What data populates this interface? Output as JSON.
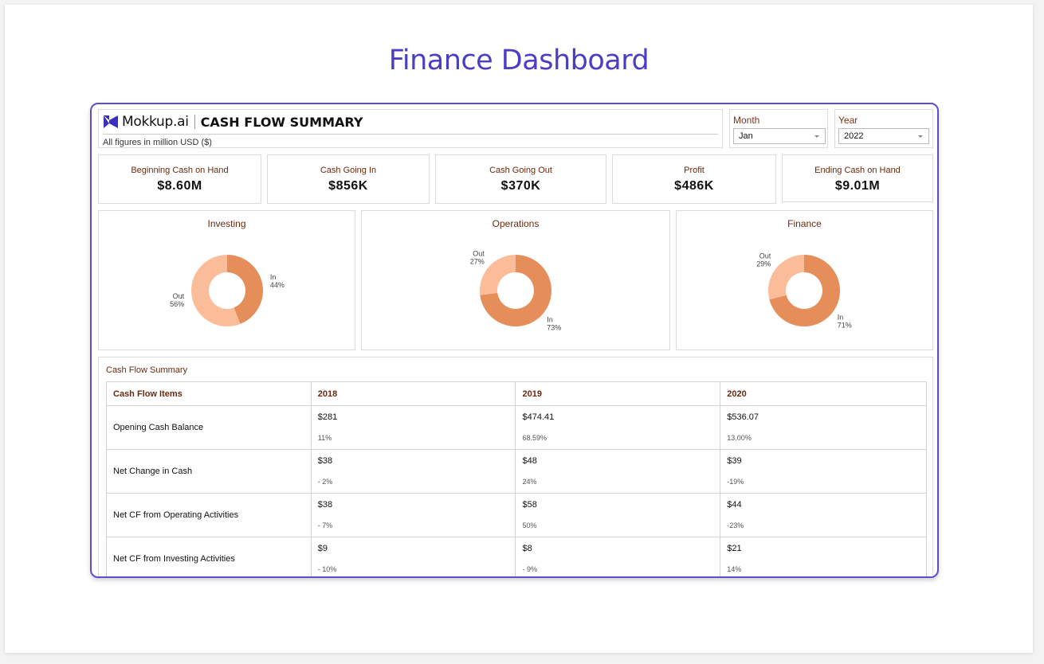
{
  "page": {
    "title": "Finance Dashboard"
  },
  "header": {
    "brand": "Mokkup.ai",
    "title": "CASH FLOW SUMMARY",
    "subtitle": "All figures in million USD ($)",
    "logo_icon": "mokkup-logo-icon",
    "accent": "#4a3fc3"
  },
  "filters": {
    "month": {
      "label": "Month",
      "value": "Jan"
    },
    "year": {
      "label": "Year",
      "value": "2022"
    }
  },
  "kpis": [
    {
      "label": "Beginning Cash on Hand",
      "value": "$8.60M"
    },
    {
      "label": "Cash Going In",
      "value": "$856K"
    },
    {
      "label": "Cash Going Out",
      "value": "$370K"
    },
    {
      "label": "Profit",
      "value": "$486K"
    },
    {
      "label": "Ending Cash on Hand",
      "value": "$9.01M"
    }
  ],
  "chart_data": [
    {
      "type": "pie",
      "title": "Investing",
      "series": [
        {
          "name": "In",
          "value": 44,
          "label": "44%"
        },
        {
          "name": "Out",
          "value": 56,
          "label": "56%"
        }
      ],
      "colors": {
        "In": "#e58e5a",
        "Out": "#fbbd99"
      }
    },
    {
      "type": "pie",
      "title": "Operations",
      "series": [
        {
          "name": "In",
          "value": 73,
          "label": "73%"
        },
        {
          "name": "Out",
          "value": 27,
          "label": "27%"
        }
      ],
      "colors": {
        "In": "#e58e5a",
        "Out": "#fbbd99"
      }
    },
    {
      "type": "pie",
      "title": "Finance",
      "series": [
        {
          "name": "In",
          "value": 71,
          "label": "71%"
        },
        {
          "name": "Out",
          "value": 29,
          "label": "29%"
        }
      ],
      "colors": {
        "In": "#e58e5a",
        "Out": "#fbbd99"
      }
    }
  ],
  "table": {
    "title": "Cash Flow Summary",
    "columns": [
      "Cash Flow Items",
      "2018",
      "2019",
      "2020"
    ],
    "rows": [
      {
        "item": "Opening Cash Balance",
        "cells": [
          {
            "value": "$281",
            "pct": "11%"
          },
          {
            "value": "$474.41",
            "pct": "68.59%"
          },
          {
            "value": "$536.07",
            "pct": "13.00%"
          }
        ]
      },
      {
        "item": "Net Change in Cash",
        "cells": [
          {
            "value": "$38",
            "pct": "- 2%"
          },
          {
            "value": "$48",
            "pct": "24%"
          },
          {
            "value": "$39",
            "pct": "-19%"
          }
        ]
      },
      {
        "item": "Net CF from Operating Activities",
        "cells": [
          {
            "value": "$38",
            "pct": "- 7%"
          },
          {
            "value": "$58",
            "pct": "50%"
          },
          {
            "value": "$44",
            "pct": "-23%"
          }
        ]
      },
      {
        "item": "Net CF from Investing Activities",
        "cells": [
          {
            "value": "$9",
            "pct": "- 10%"
          },
          {
            "value": "$8",
            "pct": "- 9%"
          },
          {
            "value": "$21",
            "pct": "14%"
          }
        ]
      }
    ]
  }
}
